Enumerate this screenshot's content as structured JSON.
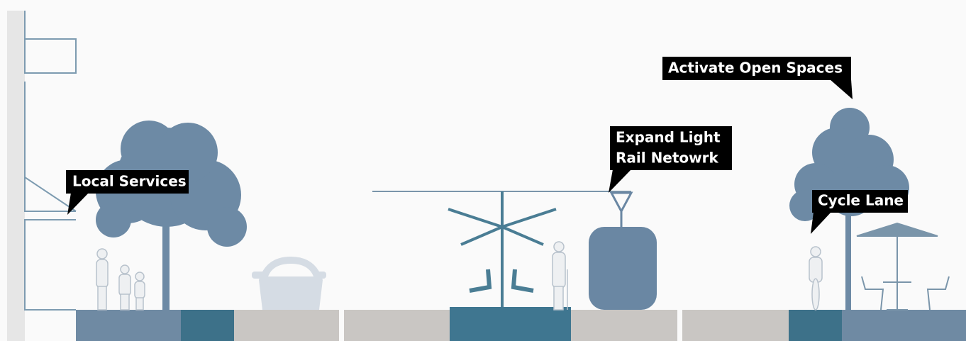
{
  "callouts": [
    {
      "lines": [
        "Local Services"
      ]
    },
    {
      "lines": [
        "Expand Light",
        "Rail Netowrk"
      ]
    },
    {
      "lines": [
        "Activate Open Spaces"
      ]
    },
    {
      "lines": [
        "Cycle Lane"
      ]
    }
  ]
}
